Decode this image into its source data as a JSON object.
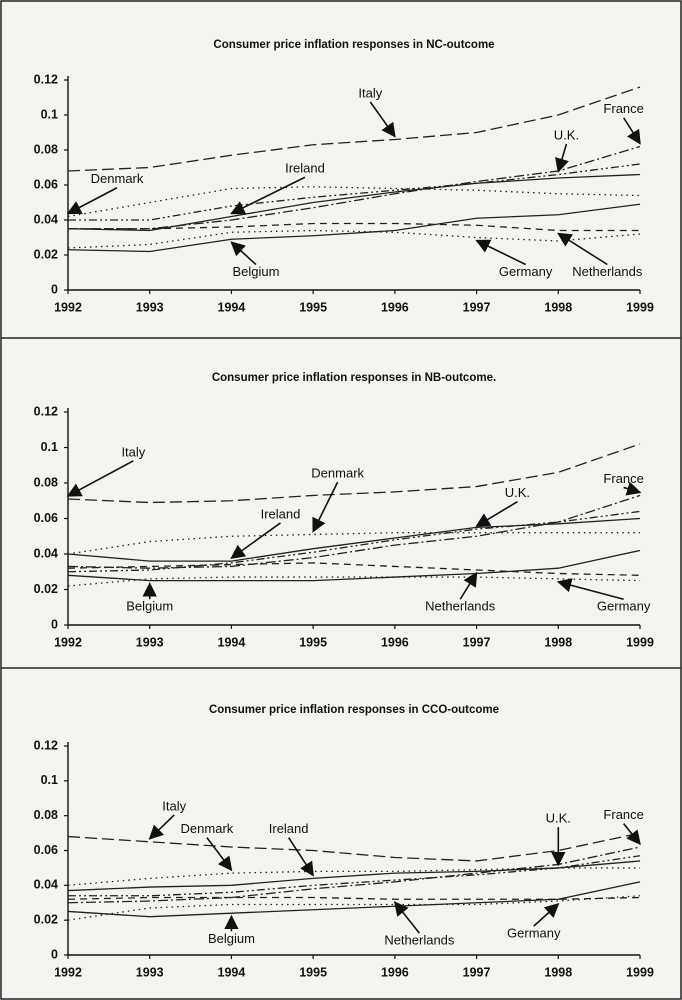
{
  "chart_data": [
    {
      "type": "line",
      "title": "Consumer price inflation responses in NC-outcome",
      "x": [
        1992,
        1993,
        1994,
        1995,
        1996,
        1997,
        1998,
        1999
      ],
      "xlim": [
        1992,
        1999
      ],
      "xticks": [
        1992,
        1993,
        1994,
        1995,
        1996,
        1997,
        1998,
        1999
      ],
      "ylim": [
        0,
        0.12
      ],
      "yticks": [
        0,
        0.02,
        0.04,
        0.06,
        0.08,
        0.1,
        0.12
      ],
      "series": [
        {
          "name": "Italy",
          "color": "#222",
          "values": [
            0.068,
            0.07,
            0.077,
            0.083,
            0.086,
            0.09,
            0.1,
            0.116
          ]
        },
        {
          "name": "France",
          "color": "#222",
          "values": [
            0.035,
            0.035,
            0.04,
            0.047,
            0.055,
            0.062,
            0.068,
            0.082
          ]
        },
        {
          "name": "U.K.",
          "color": "#222",
          "values": [
            0.04,
            0.04,
            0.048,
            0.053,
            0.057,
            0.061,
            0.066,
            0.072
          ]
        },
        {
          "name": "Ireland",
          "color": "#222",
          "values": [
            0.035,
            0.034,
            0.042,
            0.05,
            0.056,
            0.061,
            0.064,
            0.066
          ]
        },
        {
          "name": "Denmark",
          "color": "#222",
          "values": [
            0.042,
            0.05,
            0.058,
            0.059,
            0.058,
            0.057,
            0.055,
            0.054
          ]
        },
        {
          "name": "Belgium",
          "color": "#222",
          "values": [
            0.023,
            0.022,
            0.029,
            0.031,
            0.034,
            0.041,
            0.043,
            0.049
          ]
        },
        {
          "name": "Germany",
          "color": "#222",
          "values": [
            0.024,
            0.026,
            0.033,
            0.034,
            0.033,
            0.03,
            0.028,
            0.032
          ]
        },
        {
          "name": "Netherlands",
          "color": "#222",
          "values": [
            0.035,
            0.035,
            0.036,
            0.038,
            0.038,
            0.037,
            0.034,
            0.034
          ]
        }
      ]
    },
    {
      "type": "line",
      "title": "Consumer price inflation responses in NB-outcome.",
      "x": [
        1992,
        1993,
        1994,
        1995,
        1996,
        1997,
        1998,
        1999
      ],
      "xlim": [
        1992,
        1999
      ],
      "xticks": [
        1992,
        1993,
        1994,
        1995,
        1996,
        1997,
        1998,
        1999
      ],
      "ylim": [
        0,
        0.12
      ],
      "yticks": [
        0,
        0.02,
        0.04,
        0.06,
        0.08,
        0.1,
        0.12
      ],
      "series": [
        {
          "name": "Italy",
          "color": "#222",
          "values": [
            0.071,
            0.069,
            0.07,
            0.073,
            0.075,
            0.078,
            0.086,
            0.102
          ]
        },
        {
          "name": "France",
          "color": "#222",
          "values": [
            0.033,
            0.032,
            0.033,
            0.038,
            0.045,
            0.05,
            0.058,
            0.073
          ]
        },
        {
          "name": "U.K.",
          "color": "#222",
          "values": [
            0.03,
            0.031,
            0.035,
            0.041,
            0.048,
            0.054,
            0.058,
            0.064
          ]
        },
        {
          "name": "Ireland",
          "color": "#222",
          "values": [
            0.04,
            0.036,
            0.036,
            0.043,
            0.049,
            0.055,
            0.057,
            0.06
          ]
        },
        {
          "name": "Denmark",
          "color": "#222",
          "values": [
            0.04,
            0.047,
            0.05,
            0.051,
            0.052,
            0.052,
            0.052,
            0.052
          ]
        },
        {
          "name": "Belgium",
          "color": "#222",
          "values": [
            0.028,
            0.025,
            0.025,
            0.025,
            0.027,
            0.029,
            0.032,
            0.042
          ]
        },
        {
          "name": "Germany",
          "color": "#222",
          "values": [
            0.022,
            0.026,
            0.027,
            0.027,
            0.027,
            0.027,
            0.026,
            0.025
          ]
        },
        {
          "name": "Netherlands",
          "color": "#222",
          "values": [
            0.032,
            0.033,
            0.034,
            0.035,
            0.033,
            0.031,
            0.029,
            0.028
          ]
        }
      ]
    },
    {
      "type": "line",
      "title": "Consumer price inflation responses in CCO-outcome",
      "x": [
        1992,
        1993,
        1994,
        1995,
        1996,
        1997,
        1998,
        1999
      ],
      "xlim": [
        1992,
        1999
      ],
      "xticks": [
        1992,
        1993,
        1994,
        1995,
        1996,
        1997,
        1998,
        1999
      ],
      "ylim": [
        0,
        0.12
      ],
      "yticks": [
        0,
        0.02,
        0.04,
        0.06,
        0.08,
        0.1,
        0.12
      ],
      "series": [
        {
          "name": "Italy",
          "color": "#222",
          "values": [
            0.068,
            0.065,
            0.062,
            0.06,
            0.056,
            0.054,
            0.06,
            0.07
          ]
        },
        {
          "name": "France",
          "color": "#222",
          "values": [
            0.03,
            0.031,
            0.033,
            0.038,
            0.042,
            0.047,
            0.052,
            0.062
          ]
        },
        {
          "name": "U.K.",
          "color": "#222",
          "values": [
            0.034,
            0.034,
            0.036,
            0.04,
            0.043,
            0.046,
            0.05,
            0.057
          ]
        },
        {
          "name": "Ireland",
          "color": "#222",
          "values": [
            0.037,
            0.039,
            0.04,
            0.044,
            0.047,
            0.048,
            0.05,
            0.054
          ]
        },
        {
          "name": "Denmark",
          "color": "#222",
          "values": [
            0.04,
            0.044,
            0.047,
            0.048,
            0.048,
            0.049,
            0.05,
            0.05
          ]
        },
        {
          "name": "Belgium",
          "color": "#222",
          "values": [
            0.025,
            0.022,
            0.024,
            0.026,
            0.028,
            0.03,
            0.032,
            0.042
          ]
        },
        {
          "name": "Germany",
          "color": "#222",
          "values": [
            0.02,
            0.027,
            0.029,
            0.029,
            0.029,
            0.029,
            0.031,
            0.034
          ]
        },
        {
          "name": "Netherlands",
          "color": "#222",
          "values": [
            0.032,
            0.033,
            0.033,
            0.033,
            0.032,
            0.032,
            0.032,
            0.033
          ]
        }
      ]
    }
  ]
}
